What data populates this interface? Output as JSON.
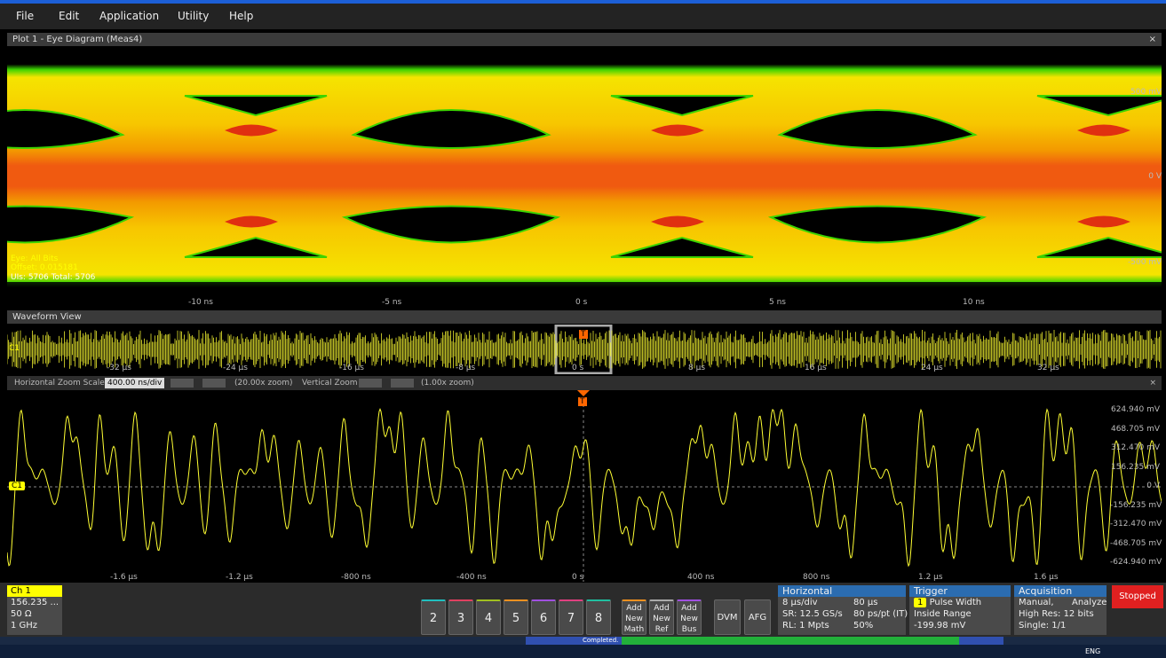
{
  "menu": [
    "File",
    "Edit",
    "Application",
    "Utility",
    "Help"
  ],
  "plot1": {
    "title": "Plot 1 - Eye Diagram (Meas4)",
    "eye_label": "Eye: All Bits",
    "offset": "Offset: 0.015181",
    "uis": "UIs: 5706  Total: 5706",
    "y_labels": [
      "500 mV",
      "0 V",
      "-500 mV"
    ],
    "x_labels": [
      "-10 ns",
      "-5 ns",
      "0 s",
      "5 ns",
      "10 ns"
    ]
  },
  "waveform_view": {
    "title": "Waveform View",
    "overview_x_labels": [
      "-32 µs",
      "-24 µs",
      "-16 µs",
      "-8 µs",
      "0 s",
      "8 µs",
      "16 µs",
      "24 µs",
      "32 µs"
    ],
    "overview_channel": "C1",
    "trigger": "T",
    "zoom_bar": {
      "h_label": "Horizontal Zoom Scale",
      "h_value": "400.00 ns/div",
      "h_zoom": "(20.00x zoom)",
      "v_label": "Vertical Zoom",
      "v_zoom": "(1.00x zoom)"
    },
    "y_labels": [
      "624.940 mV",
      "468.705 mV",
      "312.470 mV",
      "156.235 mV",
      "0 V",
      "-156.235 mV",
      "-312.470 mV",
      "-468.705 mV",
      "-624.940 mV"
    ],
    "x_labels": [
      "-1.6 µs",
      "-1.2 µs",
      "-800 ns",
      "-400 ns",
      "0 s",
      "400 ns",
      "800 ns",
      "1.2 µs",
      "1.6 µs"
    ],
    "channel": "C1"
  },
  "status": {
    "channel": {
      "title": "Ch 1",
      "lines": [
        "156.235 ...",
        "50 Ω",
        "1 GHz"
      ]
    },
    "buttons": [
      "2",
      "3",
      "4",
      "5",
      "6",
      "7",
      "8"
    ],
    "add": [
      [
        "Add",
        "New",
        "Math"
      ],
      [
        "Add",
        "New",
        "Ref"
      ],
      [
        "Add",
        "New",
        "Bus"
      ]
    ],
    "tools": [
      "DVM",
      "AFG"
    ],
    "horizontal": {
      "title": "Horizontal",
      "lines": [
        [
          "8 µs/div",
          "80 µs"
        ],
        [
          "SR: 12.5 GS/s",
          "80 ps/pt (IT)"
        ],
        [
          "RL: 1 Mpts",
          "50%"
        ]
      ]
    },
    "trigger": {
      "title": "Trigger",
      "source": "1",
      "lines": [
        "Pulse Width",
        "Inside Range",
        "-199.98 mV"
      ]
    },
    "acquisition": {
      "title": "Acquisition",
      "lines": [
        [
          "Manual,",
          "Analyze"
        ],
        [
          "High Res: 12 bits"
        ],
        [
          "Single: 1/1"
        ]
      ]
    },
    "run_state": "Stopped"
  },
  "progress": "Completed.",
  "taskbar": {
    "lang": "ENG"
  }
}
